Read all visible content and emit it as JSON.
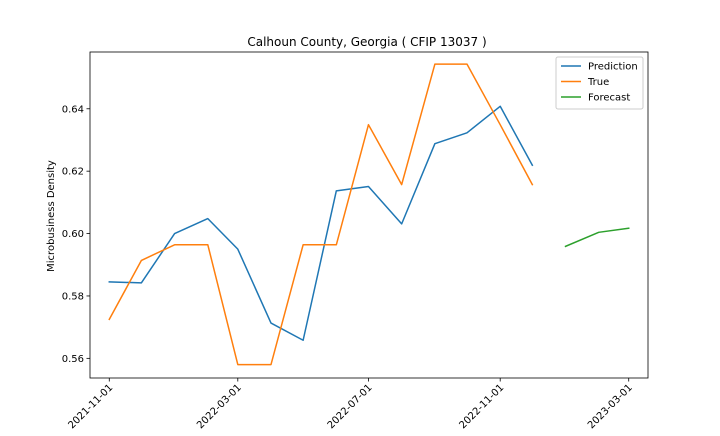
{
  "chart_data": {
    "type": "line",
    "title": "Calhoun County, Georgia ( CFIP 13037 )",
    "xlabel": "",
    "ylabel": "Microbusiness Density",
    "x_ticks": [
      "2021-11-01",
      "2022-03-01",
      "2022-07-01",
      "2022-11-01",
      "2023-03-01"
    ],
    "y_ticks": [
      0.56,
      0.58,
      0.6,
      0.62,
      0.64
    ],
    "xlim": [
      "2021-10-14",
      "2023-03-19"
    ],
    "ylim": [
      0.5537,
      0.6582
    ],
    "grid": false,
    "legend_position": "top-right",
    "series": [
      {
        "name": "Prediction",
        "color": "#1f77b4",
        "points": [
          [
            "2021-11-01",
            0.5845
          ],
          [
            "2021-12-01",
            0.5842
          ],
          [
            "2022-01-01",
            0.6
          ],
          [
            "2022-02-01",
            0.6048
          ],
          [
            "2022-03-01",
            0.595
          ],
          [
            "2022-04-01",
            0.5713
          ],
          [
            "2022-05-01",
            0.5658
          ],
          [
            "2022-06-01",
            0.6137
          ],
          [
            "2022-07-01",
            0.6151
          ],
          [
            "2022-08-01",
            0.6031
          ],
          [
            "2022-09-01",
            0.6288
          ],
          [
            "2022-10-01",
            0.6323
          ],
          [
            "2022-11-01",
            0.6408
          ],
          [
            "2022-12-01",
            0.6219
          ]
        ]
      },
      {
        "name": "True",
        "color": "#ff7f0e",
        "points": [
          [
            "2021-11-01",
            0.5725
          ],
          [
            "2021-12-01",
            0.5914
          ],
          [
            "2022-01-01",
            0.5964
          ],
          [
            "2022-02-01",
            0.5964
          ],
          [
            "2022-03-01",
            0.558
          ],
          [
            "2022-04-01",
            0.558
          ],
          [
            "2022-05-01",
            0.5964
          ],
          [
            "2022-06-01",
            0.5964
          ],
          [
            "2022-07-01",
            0.6349
          ],
          [
            "2022-08-01",
            0.6157
          ],
          [
            "2022-09-01",
            0.6543
          ],
          [
            "2022-10-01",
            0.6543
          ],
          [
            "2022-11-01",
            0.6349
          ],
          [
            "2022-12-01",
            0.6157
          ]
        ]
      },
      {
        "name": "Forecast",
        "color": "#2ca02c",
        "points": [
          [
            "2023-01-01",
            0.5959
          ],
          [
            "2023-02-01",
            0.6004
          ],
          [
            "2023-03-01",
            0.6017
          ]
        ]
      }
    ]
  }
}
